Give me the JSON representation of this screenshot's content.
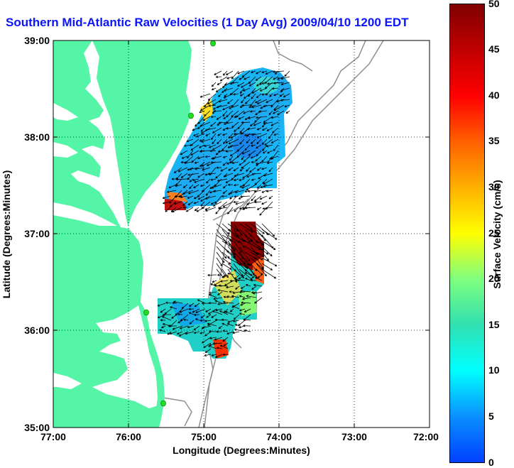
{
  "title": "Southern Mid-Atlantic Raw Velocities (1 Day Avg) 2009/04/10 1200 EDT",
  "x_axis": {
    "label": "Longitude (Degrees:Minutes)",
    "ticks": [
      "77:00",
      "76:00",
      "75:00",
      "74:00",
      "73:00",
      "72:00"
    ]
  },
  "y_axis": {
    "label": "Latitude (Degrees:Minutes)",
    "ticks": [
      "39:00",
      "38:00",
      "37:00",
      "36:00",
      "35:00"
    ]
  },
  "colorbar": {
    "label": "Surface Velocity (cm/s)",
    "ticks": [
      "50",
      "45",
      "40",
      "35",
      "30",
      "25",
      "20",
      "15",
      "10",
      "5",
      "0"
    ],
    "min": 0,
    "max": 50
  },
  "colors": {
    "land": "#55f5a8",
    "water": "#ffffff",
    "bathymetry": "#909090",
    "station": "#22dd22"
  }
}
